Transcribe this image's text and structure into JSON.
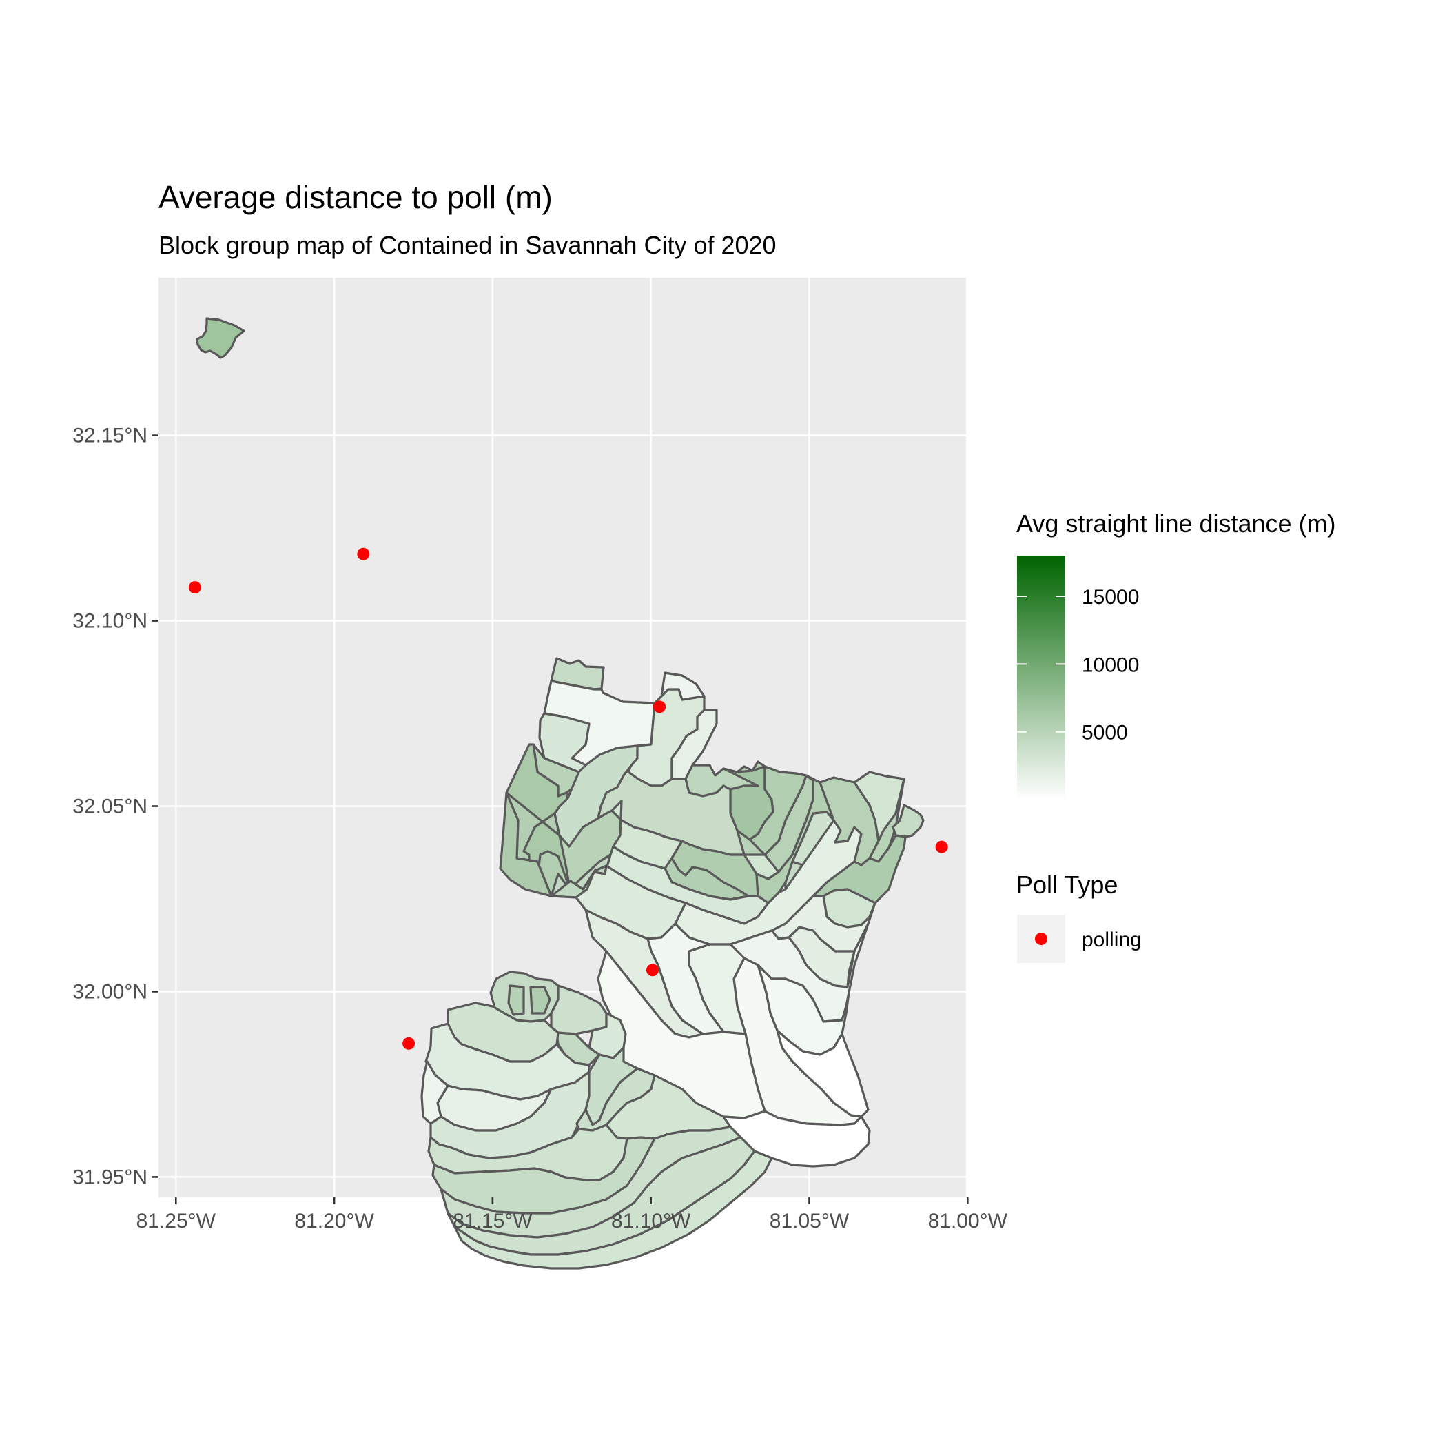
{
  "title": "Average distance to poll (m)",
  "subtitle": "Block group map of Contained in Savannah City of 2020",
  "map": {
    "x_ticks": [
      {
        "value": -81.25,
        "label": "81.25°W"
      },
      {
        "value": -81.2,
        "label": "81.20°W"
      },
      {
        "value": -81.15,
        "label": "81.15°W"
      },
      {
        "value": -81.1,
        "label": "81.10°W"
      },
      {
        "value": -81.05,
        "label": "81.05°W"
      },
      {
        "value": -81.0,
        "label": "81.00°W"
      }
    ],
    "y_ticks": [
      {
        "value": 32.15,
        "label": "32.15°N"
      },
      {
        "value": 32.1,
        "label": "32.10°N"
      },
      {
        "value": 32.05,
        "label": "32.05°N"
      },
      {
        "value": 32.0,
        "label": "32.00°N"
      },
      {
        "value": 31.95,
        "label": "31.95°N"
      }
    ],
    "lon_range": [
      -81.2555,
      -81.0005
    ],
    "lat_range": [
      31.9445,
      32.1925
    ],
    "background": "#ebebeb",
    "grid_color": "#ffffff",
    "polling_places": [
      {
        "lon": -81.244,
        "lat": 32.109
      },
      {
        "lon": -81.1908,
        "lat": 32.118
      },
      {
        "lon": -81.0973,
        "lat": 32.0768
      },
      {
        "lon": -81.0082,
        "lat": 32.039
      },
      {
        "lon": -81.0995,
        "lat": 32.0058
      },
      {
        "lon": -81.1765,
        "lat": 31.986
      }
    ]
  },
  "legend": {
    "fill_title": "Avg straight line distance (m)",
    "fill_low_color": "#ffffff",
    "fill_high_color": "#006400",
    "fill_range": [
      0,
      18000
    ],
    "fill_breaks": [
      {
        "value": 15000,
        "label": "15000"
      },
      {
        "value": 10000,
        "label": "10000"
      },
      {
        "value": 5000,
        "label": "5000"
      }
    ],
    "point_title": "Poll Type",
    "point_label": "polling",
    "point_color": "#ff0000"
  }
}
